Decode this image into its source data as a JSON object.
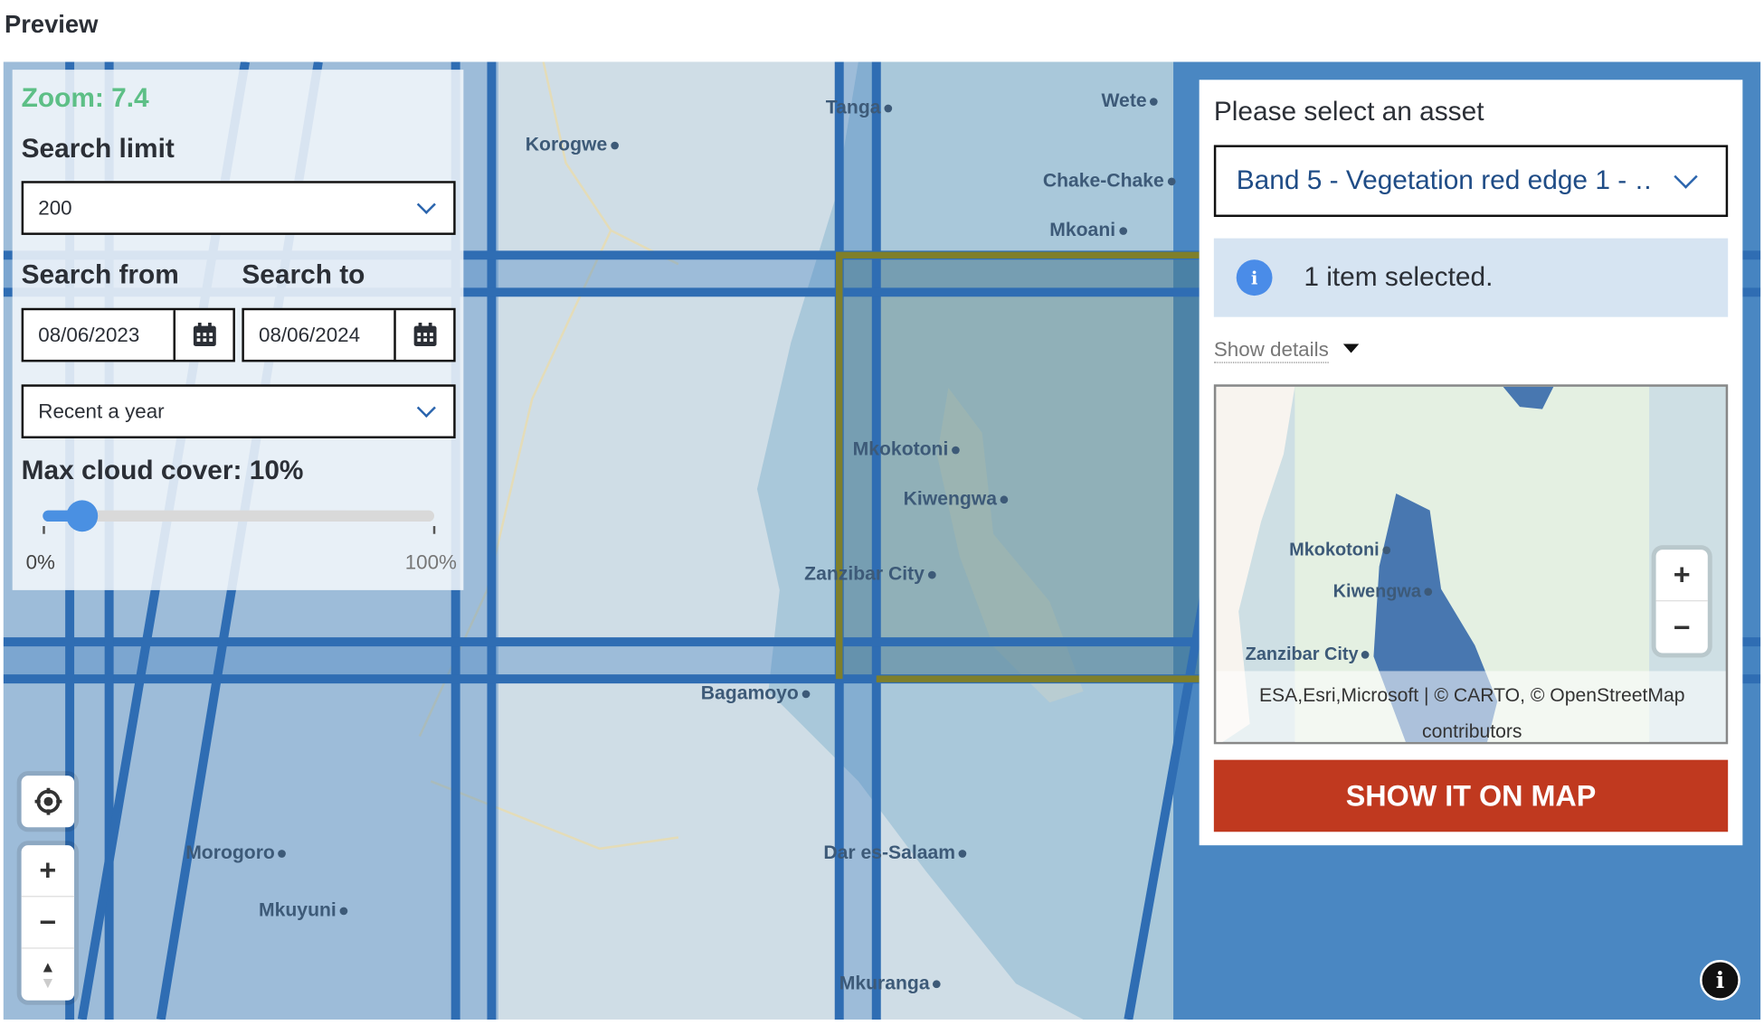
{
  "page": {
    "title": "Preview"
  },
  "map": {
    "cities": [
      "Tanga",
      "Wete",
      "Korogwe",
      "Chake-Chake",
      "Mkoani",
      "Mkokotoni",
      "Kiwengwa",
      "Zanzibar City",
      "Bagamoyo",
      "Morogoro",
      "Mkuyuni",
      "Dar es-Salaam",
      "Mkuranga"
    ],
    "colors": {
      "footprint": "#3f7fbf",
      "selected": "#7f7f2a"
    }
  },
  "search": {
    "zoom_label": "Zoom: 7.4",
    "limit_label": "Search limit",
    "limit_value": "200",
    "from_label": "Search from",
    "to_label": "Search to",
    "from_value": "08/06/2023",
    "to_value": "08/06/2024",
    "range_value": "Recent a year",
    "cloud_label": "Max cloud cover: 10%",
    "cloud_value": 10,
    "cloud_min": "0%",
    "cloud_max": "100%"
  },
  "asset": {
    "title": "Please select an asset",
    "selected": "Band 5 - Vegetation red edge 1 - …",
    "info": "1 item selected.",
    "details": "Show details",
    "minimap_cities": [
      "Mkokotoni",
      "Kiwengwa",
      "Zanzibar City"
    ],
    "attribution": "ESA,Esri,Microsoft | © CARTO, © OpenStreetMap contributors",
    "button": "SHOW IT ON MAP",
    "button_color": "#c0391f"
  }
}
